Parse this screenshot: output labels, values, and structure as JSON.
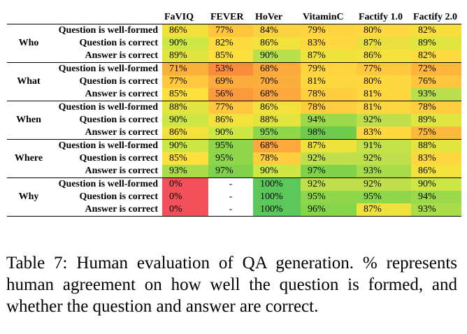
{
  "columns": [
    "FaVIQ",
    "FEVER",
    "HoVer",
    "VitaminC",
    "Factify 1.0",
    "Factify 2.0"
  ],
  "groups": [
    {
      "name": "Who",
      "rows": [
        {
          "label": "Question is well-formed",
          "values": [
            "86%",
            "77%",
            "84%",
            "79%",
            "80%",
            "82%"
          ],
          "colors": [
            "#f2e13a",
            "#ffc53c",
            "#fbd340",
            "#ffd43e",
            "#fed840",
            "#f7de3c"
          ]
        },
        {
          "label": "Question is correct",
          "values": [
            "90%",
            "82%",
            "86%",
            "83%",
            "87%",
            "89%"
          ],
          "colors": [
            "#cde744",
            "#fcdb3e",
            "#f4e23c",
            "#ffd840",
            "#eadf3e",
            "#dfe640"
          ]
        },
        {
          "label": "Answer is correct",
          "values": [
            "89%",
            "85%",
            "90%",
            "87%",
            "86%",
            "82%"
          ],
          "colors": [
            "#e2e43e",
            "#fde03c",
            "#b6e04c",
            "#efe23c",
            "#f6e23c",
            "#fcdb3e"
          ]
        }
      ]
    },
    {
      "name": "What",
      "rows": [
        {
          "label": "Question is well-formed",
          "values": [
            "71%",
            "53%",
            "68%",
            "79%",
            "77%",
            "72%"
          ],
          "colors": [
            "#fcb03c",
            "#fb8c3c",
            "#fcaa3c",
            "#ffd43e",
            "#ffc83e",
            "#fdb53c"
          ]
        },
        {
          "label": "Question is correct",
          "values": [
            "77%",
            "69%",
            "70%",
            "81%",
            "80%",
            "76%"
          ],
          "colors": [
            "#ffc83e",
            "#fbac3c",
            "#fcae3c",
            "#fcd83e",
            "#fed840",
            "#ffc53e"
          ]
        },
        {
          "label": "Answer is correct",
          "values": [
            "85%",
            "56%",
            "68%",
            "78%",
            "81%",
            "93%"
          ],
          "colors": [
            "#fde03c",
            "#fb9a3c",
            "#fca83c",
            "#ffce3e",
            "#fcd83e",
            "#b9e04c"
          ]
        }
      ]
    },
    {
      "name": "When",
      "rows": [
        {
          "label": "Question is well-formed",
          "values": [
            "88%",
            "77%",
            "86%",
            "78%",
            "81%",
            "78%"
          ],
          "colors": [
            "#e4e43e",
            "#ffc83e",
            "#f4e23c",
            "#ffce3e",
            "#fcd83e",
            "#ffce3e"
          ]
        },
        {
          "label": "Question is correct",
          "values": [
            "90%",
            "86%",
            "88%",
            "94%",
            "92%",
            "89%"
          ],
          "colors": [
            "#cde744",
            "#f4e23c",
            "#e4e43e",
            "#9cd94a",
            "#bfe04a",
            "#dfe640"
          ]
        },
        {
          "label": "Answer is correct",
          "values": [
            "86%",
            "90%",
            "95%",
            "98%",
            "83%",
            "75%"
          ],
          "colors": [
            "#f4e23c",
            "#cde744",
            "#8fd64a",
            "#6fcc4a",
            "#ffd840",
            "#fdb93c"
          ]
        }
      ]
    },
    {
      "name": "Where",
      "rows": [
        {
          "label": "Question is well-formed",
          "values": [
            "90%",
            "95%",
            "68%",
            "87%",
            "91%",
            "88%"
          ],
          "colors": [
            "#cde744",
            "#8fd64a",
            "#fca83c",
            "#efe23c",
            "#c4e248",
            "#e4e43e"
          ]
        },
        {
          "label": "Question is correct",
          "values": [
            "85%",
            "95%",
            "78%",
            "92%",
            "92%",
            "83%"
          ],
          "colors": [
            "#fde03c",
            "#8fd64a",
            "#ffce3e",
            "#bfe04a",
            "#bfe04a",
            "#ffd840"
          ]
        },
        {
          "label": "Answer is correct",
          "values": [
            "93%",
            "97%",
            "90%",
            "97%",
            "93%",
            "86%"
          ],
          "colors": [
            "#a9dc4a",
            "#7fd24a",
            "#cde744",
            "#7fd24a",
            "#a9dc4a",
            "#f4e23c"
          ]
        }
      ]
    },
    {
      "name": "Why",
      "rows": [
        {
          "label": "Question is well-formed",
          "values": [
            "0%",
            "-",
            "100%",
            "92%",
            "92%",
            "90%"
          ],
          "colors": [
            "#f2515c",
            "#ffffff",
            "#5cc85c",
            "#bfe04a",
            "#bfe04a",
            "#cde744"
          ]
        },
        {
          "label": "Question is correct",
          "values": [
            "0%",
            "-",
            "100%",
            "95%",
            "95%",
            "94%"
          ],
          "colors": [
            "#f2515c",
            "#ffffff",
            "#5cc85c",
            "#8fd64a",
            "#8fd64a",
            "#9cd94a"
          ]
        },
        {
          "label": "Answer is correct",
          "values": [
            "0%",
            "-",
            "100%",
            "96%",
            "87%",
            "93%"
          ],
          "colors": [
            "#f2515c",
            "#ffffff",
            "#5cc85c",
            "#86d44a",
            "#efe23c",
            "#a9dc4a"
          ]
        }
      ]
    }
  ],
  "caption": "Table 7: Human evaluation of QA generation. % represents human agreement on how well the question is formed, and whether the question and answer are correct."
}
